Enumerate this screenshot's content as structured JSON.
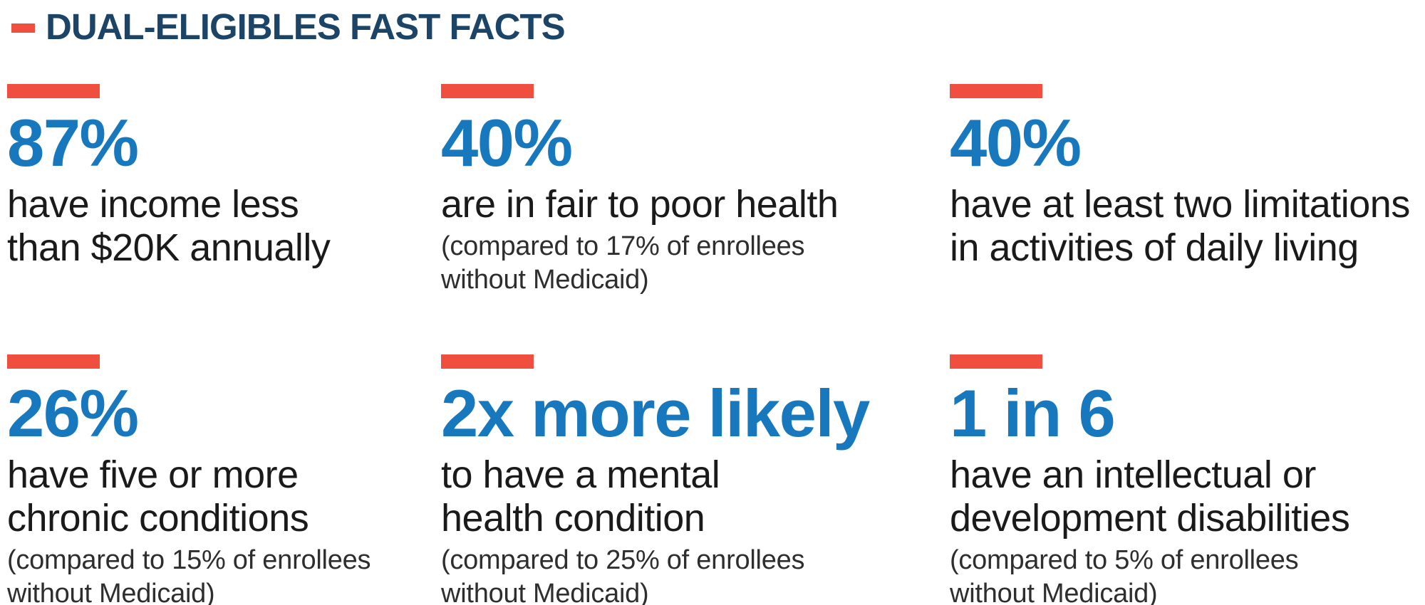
{
  "page": {
    "title": "DUAL-ELIGIBLES FAST FACTS"
  },
  "colors": {
    "accent_red": "#F04E3E",
    "stat_blue": "#1878BE",
    "title_navy": "#1C4467",
    "body_text": "#1A1A1A",
    "note_text": "#2E2E2E"
  },
  "stats": [
    {
      "number": "87%",
      "description_lines": [
        "have income less",
        "than $20K annually"
      ],
      "note_lines": []
    },
    {
      "number": "40%",
      "description_lines": [
        "are in fair to poor health"
      ],
      "note_lines": [
        "(compared to 17% of enrollees",
        "without Medicaid)"
      ]
    },
    {
      "number": "40%",
      "description_lines": [
        "have at least two limitations",
        "in activities of daily living"
      ],
      "note_lines": []
    },
    {
      "number": "26%",
      "description_lines": [
        "have five or more",
        "chronic conditions"
      ],
      "note_lines": [
        "(compared to 15% of enrollees",
        "without Medicaid)"
      ]
    },
    {
      "number": "2x more likely",
      "description_lines": [
        "to have a mental",
        "health condition"
      ],
      "note_lines": [
        "(compared to 25% of enrollees",
        "without Medicaid)"
      ]
    },
    {
      "number": "1 in 6",
      "description_lines": [
        "have an intellectual or",
        "development disabilities"
      ],
      "note_lines": [
        "(compared to 5% of enrollees",
        "without Medicaid)"
      ]
    }
  ]
}
